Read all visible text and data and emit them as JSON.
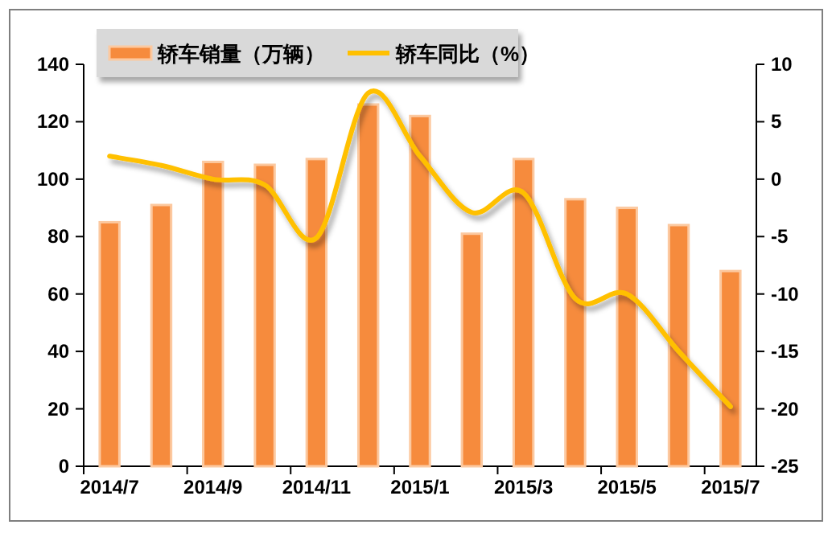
{
  "chart_data": {
    "type": "bar",
    "categories": [
      "2014/7",
      null,
      "2014/9",
      null,
      "2014/11",
      null,
      "2015/1",
      null,
      "2015/3",
      null,
      "2015/5",
      null,
      "2015/7"
    ],
    "series": [
      {
        "name": "轿车销量（万辆）",
        "color": "#f68b3d",
        "values": [
          85,
          91,
          106,
          105,
          107,
          126,
          122,
          81,
          107,
          93,
          90,
          84,
          68
        ]
      },
      {
        "name": "轿车同比（%）",
        "type": "line",
        "axis": "y2",
        "color": "#ffc000",
        "values": [
          2,
          1.2,
          0,
          -0.5,
          -5.1,
          7.5,
          2,
          -2.9,
          -1.2,
          -10.4,
          -10,
          -15,
          -19.8
        ]
      }
    ],
    "ylim": [
      0,
      140
    ],
    "yticks": [
      0,
      20,
      40,
      60,
      80,
      100,
      120,
      140
    ],
    "y2lim": [
      -25,
      10
    ],
    "y2ticks": [
      -25,
      -20,
      -15,
      -10,
      -5,
      0,
      5,
      10
    ],
    "legend": "top"
  }
}
